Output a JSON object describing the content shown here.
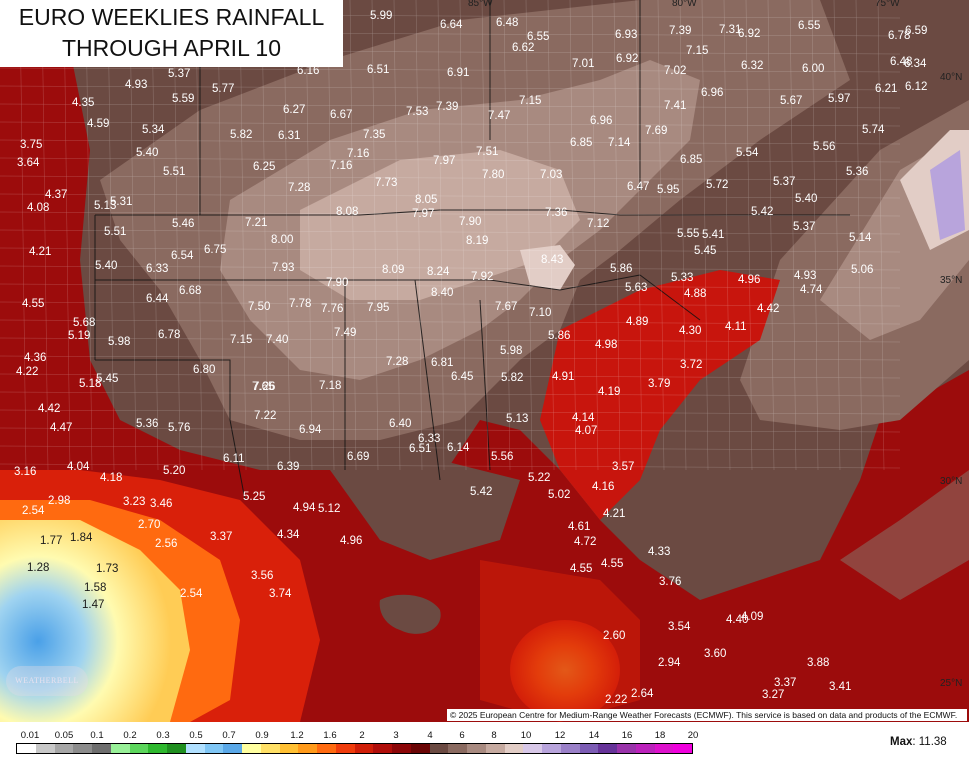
{
  "title": {
    "line1": "EURO WEEKLIES RAINFALL",
    "line2": "THROUGH APRIL 10"
  },
  "logo_text": "WEATHERBELL",
  "copyright": "© 2025 European Centre for Medium-Range Weather Forecasts (ECMWF). This service is based on data and products of the ECMWF.",
  "max": {
    "label": "Max",
    "value": ": 11.38"
  },
  "longitude_labels": [
    "85°W",
    "80°W",
    "75°W"
  ],
  "latitude_labels": [
    "40°N",
    "35°N",
    "30°N",
    "25°N"
  ],
  "legend": {
    "ticks": [
      "0.01",
      "0.05",
      "0.1",
      "0.2",
      "0.3",
      "0.5",
      "0.7",
      "0.9",
      "1.2",
      "1.6",
      "2",
      "3",
      "4",
      "6",
      "8",
      "10",
      "12",
      "14",
      "16",
      "18",
      "20"
    ],
    "colors": [
      "#ffffff",
      "#c8c8c8",
      "#a6a6a6",
      "#8c8c8c",
      "#6e6e6e",
      "#98f098",
      "#5cd65c",
      "#2eb82e",
      "#1f8f1f",
      "#b0e0ff",
      "#7fc6f5",
      "#5aa8e8",
      "#ffffa0",
      "#ffe066",
      "#ffc033",
      "#ff9a1a",
      "#ff6a10",
      "#f03c0c",
      "#d01e08",
      "#b00e0a",
      "#8c0608",
      "#6a0505",
      "#6b4a42",
      "#8a6a60",
      "#a88a80",
      "#c6aaa0",
      "#e2cdc6",
      "#d8c8e8",
      "#b8a4dc",
      "#9a80c8",
      "#7c5cb4",
      "#663399",
      "#9933aa",
      "#bb22bb",
      "#dd11cc",
      "#f000dd"
    ]
  },
  "rainfall_values": [
    "5.99",
    "6.64",
    "6.48",
    "6.55",
    "6.62",
    "6.93",
    "7.39",
    "7.31",
    "6.92",
    "6.55",
    "6.78",
    "6.59",
    "6.48",
    "6.34",
    "5.37",
    "4.93",
    "4.35",
    "4.59",
    "5.59",
    "5.77",
    "6.16",
    "6.51",
    "6.91",
    "7.01",
    "6.92",
    "7.15",
    "6.32",
    "6.00",
    "7.02",
    "6.21",
    "6.12",
    "3.75",
    "3.64",
    "5.34",
    "5.82",
    "6.27",
    "6.67",
    "7.53",
    "7.39",
    "7.47",
    "7.15",
    "6.96",
    "7.41",
    "6.96",
    "5.67",
    "5.97",
    "5.74",
    "5.40",
    "6.31",
    "7.35",
    "7.69",
    "7.14",
    "6.85",
    "5.54",
    "5.56",
    "5.51",
    "6.25",
    "7.16",
    "7.16",
    "7.97",
    "7.51",
    "7.03",
    "6.85",
    "5.36",
    "4.37",
    "5.13",
    "5.31",
    "7.28",
    "7.73",
    "8.05",
    "7.80",
    "6.47",
    "5.95",
    "5.72",
    "5.37",
    "4.08",
    "8.08",
    "7.97",
    "7.36",
    "5.42",
    "5.40",
    "5.46",
    "7.21",
    "7.90",
    "7.12",
    "5.37",
    "4.21",
    "5.51",
    "8.00",
    "8.19",
    "5.55",
    "5.41",
    "5.14",
    "6.75",
    "8.43",
    "5.45",
    "5.40",
    "6.33",
    "6.54",
    "7.93",
    "8.09",
    "8.24",
    "7.92",
    "5.86",
    "5.33",
    "4.96",
    "4.93",
    "5.06",
    "6.68",
    "7.90",
    "8.40",
    "5.63",
    "4.74",
    "6.44",
    "4.88",
    "4.55",
    "7.50",
    "7.78",
    "7.76",
    "7.95",
    "7.67",
    "7.10",
    "4.42",
    "5.68",
    "4.89",
    "5.19",
    "6.78",
    "7.49",
    "4.11",
    "5.98",
    "7.15",
    "7.40",
    "5.86",
    "4.30",
    "4.98",
    "4.36",
    "5.98",
    "4.22",
    "6.80",
    "7.28",
    "6.81",
    "3.72",
    "5.45",
    "5.18",
    "6.45",
    "5.82",
    "4.91",
    "7.65",
    "7.18",
    "3.79",
    "4.19",
    "7.26",
    "4.42",
    "5.36",
    "5.76",
    "7.22",
    "6.40",
    "5.13",
    "4.14",
    "4.47",
    "6.94",
    "4.07",
    "6.33",
    "6.51",
    "6.14",
    "6.69",
    "5.56",
    "6.11",
    "3.16",
    "4.04",
    "6.39",
    "5.20",
    "3.57",
    "5.22",
    "4.18",
    "5.42",
    "4.16",
    "2.98",
    "5.02",
    "3.23",
    "3.46",
    "5.25",
    "2.54",
    "4.94",
    "5.12",
    "4.21",
    "2.70",
    "4.61",
    "1.84",
    "3.37",
    "4.34",
    "4.96",
    "4.72",
    "1.77",
    "2.56",
    "4.33",
    "1.28",
    "1.73",
    "4.55",
    "4.55",
    "3.56",
    "3.76",
    "1.58",
    "2.54",
    "3.74",
    "1.47",
    "4.40",
    "4.09",
    "3.54",
    "2.60",
    "3.60",
    "3.88",
    "2.94",
    "3.37",
    "3.41",
    "3.27",
    "2.64",
    "2.22"
  ]
}
